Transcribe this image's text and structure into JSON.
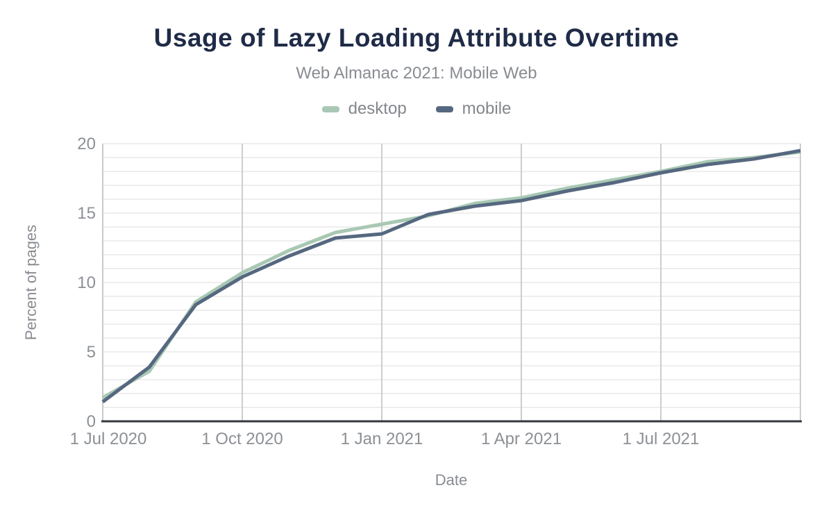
{
  "header": {
    "title": "Usage of Lazy Loading Attribute Overtime",
    "subtitle": "Web Almanac 2021: Mobile Web"
  },
  "legend": {
    "items": [
      {
        "label": "desktop",
        "color": "#a8c8b3"
      },
      {
        "label": "mobile",
        "color": "#566880"
      }
    ]
  },
  "colors": {
    "title": "#1f2b47",
    "subtitle": "#888c91",
    "legend_label": "#83878c",
    "tick_label": "#8c9095",
    "axis_title": "#888c91",
    "grid_minor": "#e9e9e9",
    "grid_major": "#cdcdcd",
    "y_axis_line": "#c9c9c9",
    "x_axis_line": "#33373d",
    "desktop_line": "#a8c8b3",
    "mobile_line": "#566880"
  },
  "chart_data": {
    "type": "line",
    "title": "Usage of Lazy Loading Attribute Overtime",
    "subtitle": "Web Almanac 2021: Mobile Web",
    "xlabel": "Date",
    "ylabel": "Percent of pages",
    "x": [
      "1 Jul 2020",
      "1 Aug 2020",
      "1 Sep 2020",
      "1 Oct 2020",
      "1 Nov 2020",
      "1 Dec 2020",
      "1 Jan 2021",
      "1 Feb 2021",
      "1 Mar 2021",
      "1 Apr 2021",
      "1 May 2021",
      "1 Jun 2021",
      "1 Jul 2021",
      "1 Aug 2021",
      "1 Sep 2021",
      "1 Oct 2021"
    ],
    "series": [
      {
        "name": "desktop",
        "values": [
          1.7,
          3.6,
          8.6,
          10.7,
          12.3,
          13.6,
          14.2,
          14.8,
          15.7,
          16.1,
          16.8,
          17.4,
          18.0,
          18.7,
          19.0,
          19.4
        ]
      },
      {
        "name": "mobile",
        "values": [
          1.4,
          3.9,
          8.4,
          10.4,
          11.9,
          13.2,
          13.5,
          14.9,
          15.5,
          15.9,
          16.6,
          17.2,
          17.9,
          18.5,
          18.9,
          19.5
        ]
      }
    ],
    "ylim": [
      0,
      20
    ],
    "yticks": [
      0,
      5,
      10,
      15,
      20
    ],
    "xtick_labels": [
      {
        "index": 0,
        "label": "1 Jul 2020"
      },
      {
        "index": 3,
        "label": "1 Oct 2020"
      },
      {
        "index": 6,
        "label": "1 Jan 2021"
      },
      {
        "index": 9,
        "label": "1 Apr 2021"
      },
      {
        "index": 12,
        "label": "1 Jul 2021"
      }
    ],
    "vertical_gridline_indices": [
      3,
      6,
      9,
      12,
      15
    ],
    "minor_horizontal_grid_step": 1,
    "grid": "on",
    "legend_position": "top"
  }
}
